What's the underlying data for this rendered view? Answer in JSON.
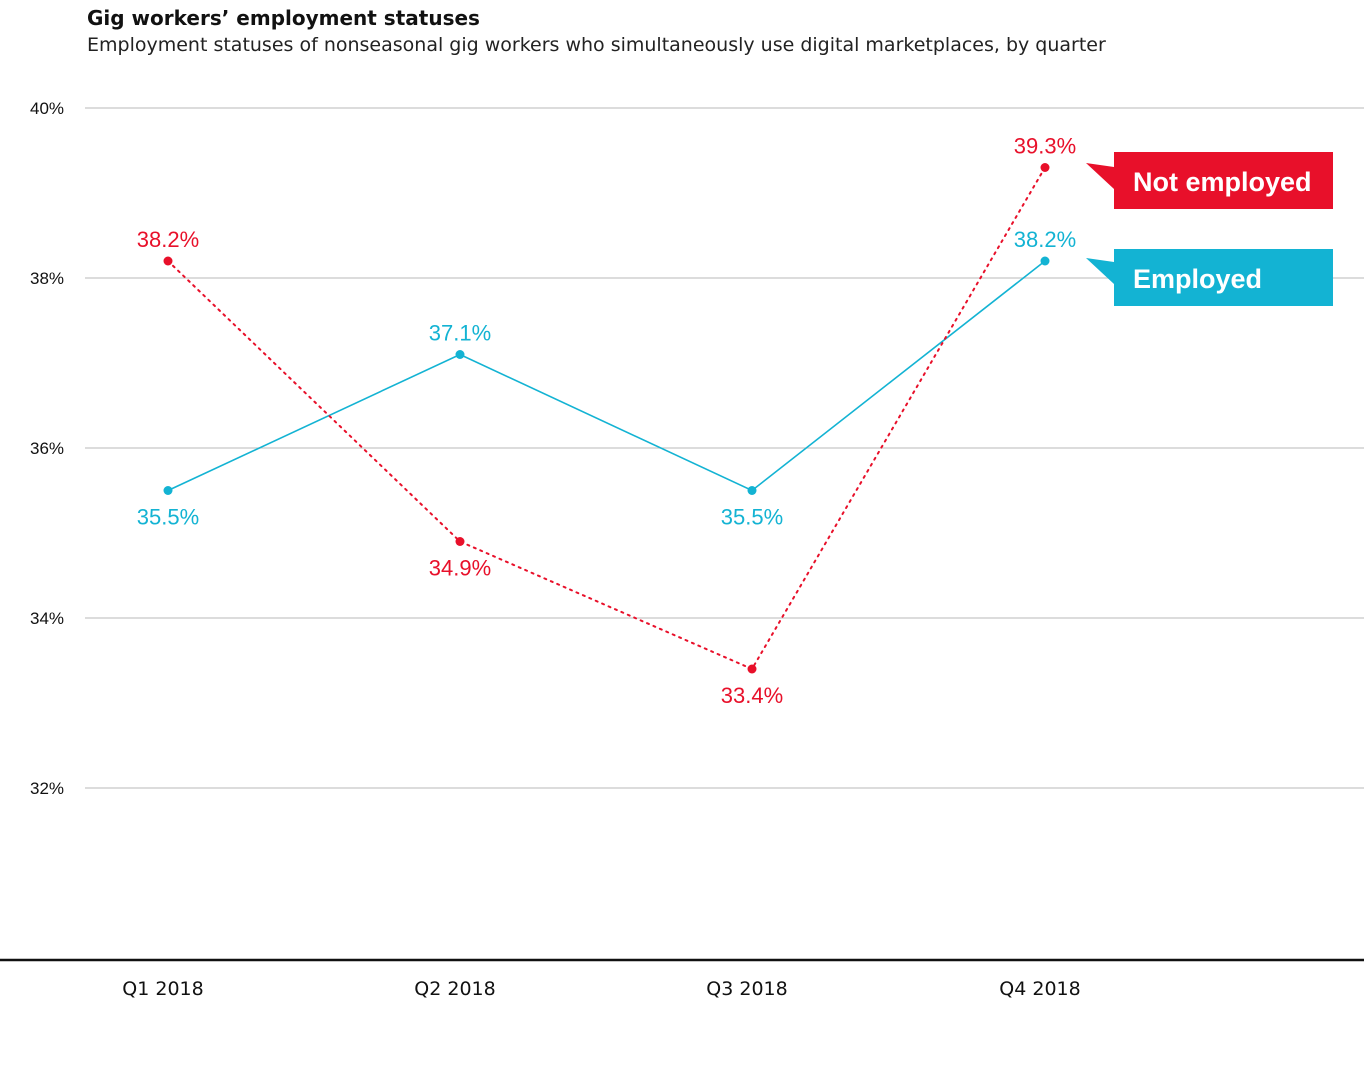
{
  "chart_data": {
    "type": "line",
    "title": "Gig workers’ employment statuses",
    "subtitle": "Employment statuses of nonseasonal gig workers who simultaneously use digital marketplaces, by quarter",
    "categories": [
      "Q1 2018",
      "Q2 2018",
      "Q3 2018",
      "Q4 2018"
    ],
    "yticks": [
      32,
      34,
      36,
      38,
      40
    ],
    "ytick_labels": [
      "32%",
      "34%",
      "36%",
      "38%",
      "40%"
    ],
    "ylim": [
      30,
      40
    ],
    "grid": true,
    "series": [
      {
        "name": "Employed",
        "values": [
          35.5,
          37.1,
          35.5,
          38.2
        ],
        "labels": [
          "35.5%",
          "37.1%",
          "35.5%",
          "38.2%"
        ],
        "label_pos": [
          "below",
          "above",
          "below",
          "above"
        ],
        "color": "#13b3d3",
        "style": "solid"
      },
      {
        "name": "Not employed",
        "values": [
          38.2,
          34.9,
          33.4,
          39.3
        ],
        "labels": [
          "38.2%",
          "34.9%",
          "33.4%",
          "39.3%"
        ],
        "label_pos": [
          "above",
          "below",
          "below",
          "above"
        ],
        "color": "#e8102a",
        "style": "dotted"
      }
    ],
    "legend_placement": "right"
  }
}
